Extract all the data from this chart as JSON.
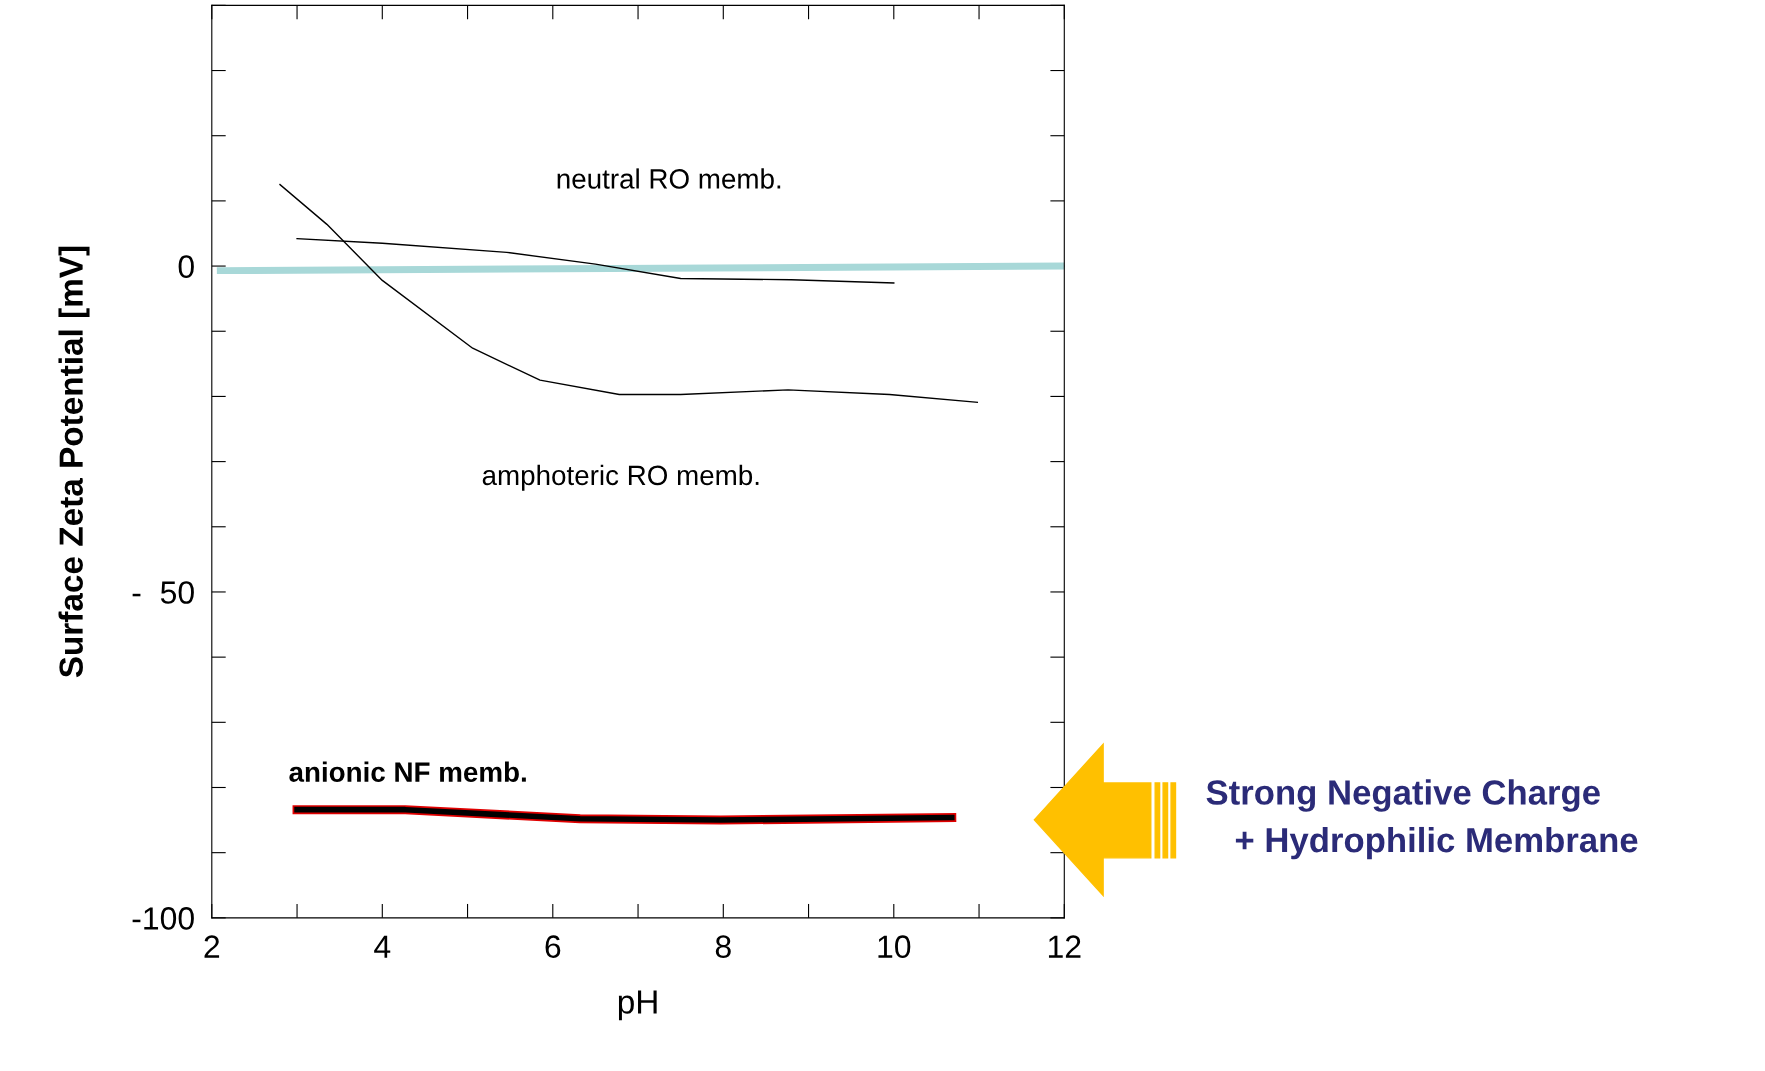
{
  "chart_data": {
    "type": "line",
    "xlabel": "pH",
    "ylabel": "Surface Zeta Potential [mV]",
    "xlim": [
      2,
      12
    ],
    "ylim": [
      -100,
      40
    ],
    "xticks": [
      2,
      {
        "value": 3,
        "label": null
      },
      4,
      {
        "value": 5,
        "label": null
      },
      6,
      {
        "value": 7,
        "label": null
      },
      8,
      {
        "value": 9,
        "label": null
      },
      10,
      {
        "value": 11,
        "label": null
      },
      12
    ],
    "yticks": [
      {
        "value": -100,
        "label": "-100"
      },
      {
        "value": -90,
        "label": null
      },
      {
        "value": -80,
        "label": null
      },
      {
        "value": -70,
        "label": null
      },
      {
        "value": -60,
        "label": null
      },
      {
        "value": -50,
        "label": "-  50"
      },
      {
        "value": -40,
        "label": null
      },
      {
        "value": -30,
        "label": null
      },
      {
        "value": -20,
        "label": null
      },
      {
        "value": -10,
        "label": null
      },
      0,
      {
        "value": 10,
        "label": null
      },
      {
        "value": 20,
        "label": null
      },
      {
        "value": 30,
        "label": null
      },
      {
        "value": 40,
        "label": null
      }
    ],
    "grid": false,
    "legend": false,
    "marker": "none",
    "line_style": "solid",
    "series": [
      {
        "color": "#a8d8d8",
        "x": [
          2.1,
          12
        ],
        "values": [
          -0.7,
          0
        ]
      },
      {
        "name": "neutral RO memb.",
        "color": "#000000",
        "x": [
          3.0,
          4.0,
          5.46,
          6.5,
          7.5,
          8.8,
          10.0
        ],
        "values": [
          4.2,
          3.5,
          2.1,
          0.3,
          -1.9,
          -2.1,
          -2.6
        ]
      },
      {
        "name": "amphoteric RO memb.",
        "color": "#000000",
        "x": [
          2.8,
          3.35,
          4.0,
          5.06,
          5.85,
          6.78,
          7.5,
          8.76,
          9.95,
          10.98
        ],
        "values": [
          12.5,
          6.4,
          -2.2,
          -12.6,
          -17.5,
          -19.7,
          -19.7,
          -19.0,
          -19.7,
          -20.9
        ]
      },
      {
        "name": "anionic NF memb.",
        "color": "#000000",
        "x": [
          3.0,
          4.27,
          6.32,
          7.97,
          10.68
        ],
        "values": [
          -83.4,
          -83.4,
          -84.8,
          -85.0,
          -84.6
        ]
      }
    ],
    "annotations": [
      "Strong Negative Charge\n   + Hydrophilic Membrane"
    ]
  }
}
